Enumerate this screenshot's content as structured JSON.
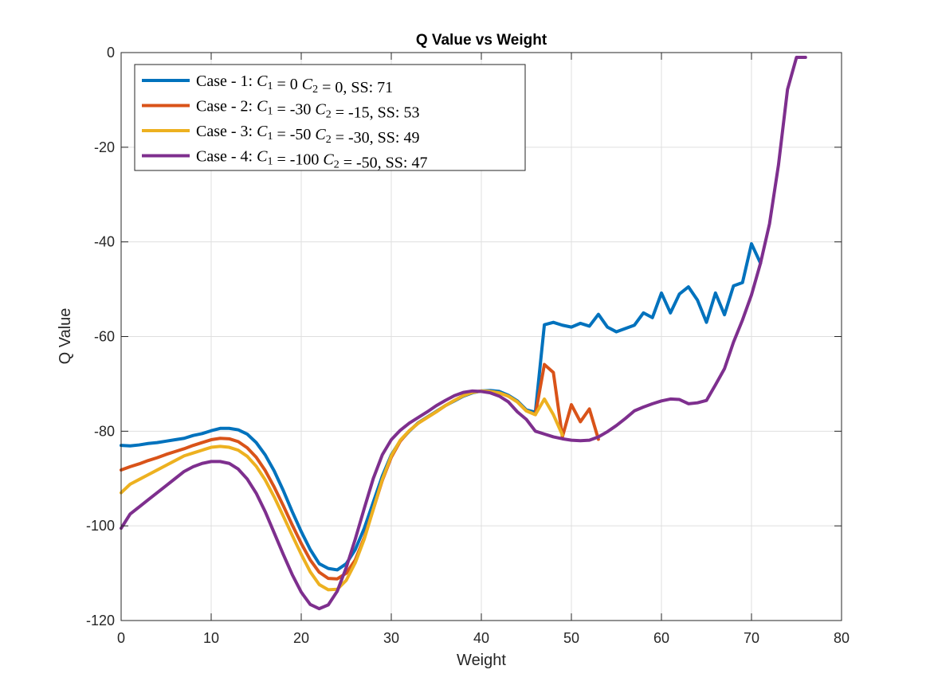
{
  "chart_data": {
    "type": "line",
    "title": "Q Value vs Weight",
    "xlabel": "Weight",
    "ylabel": "Q Value",
    "xlim": [
      0,
      80
    ],
    "ylim": [
      -120,
      0
    ],
    "xticks": [
      0,
      10,
      20,
      30,
      40,
      50,
      60,
      70,
      80
    ],
    "yticks": [
      0,
      -20,
      -40,
      -60,
      -80,
      -100,
      -120
    ],
    "grid": true,
    "legend_position": "top-left",
    "series": [
      {
        "name": "Case - 1: C1 = 0 C2 = 0, SS: 71",
        "legend": {
          "prefix": "Case - 1: ",
          "c1": "0",
          "c2": "0",
          "suffix": ", SS: 71"
        },
        "color": "#0072BD",
        "x": [
          0,
          1,
          2,
          3,
          4,
          5,
          6,
          7,
          8,
          9,
          10,
          11,
          12,
          13,
          14,
          15,
          16,
          17,
          18,
          19,
          20,
          21,
          22,
          23,
          24,
          25,
          26,
          27,
          28,
          29,
          30,
          31,
          32,
          33,
          34,
          35,
          36,
          37,
          38,
          39,
          40,
          41,
          42,
          43,
          44,
          45,
          46,
          47,
          48,
          49,
          50,
          51,
          52,
          53,
          54,
          55,
          56,
          57,
          58,
          59,
          60,
          61,
          62,
          63,
          64,
          65,
          66,
          67,
          68,
          69,
          70,
          71
        ],
        "y": [
          -83,
          -83.1,
          -82.9,
          -82.6,
          -82.4,
          -82.1,
          -81.8,
          -81.5,
          -80.9,
          -80.5,
          -79.9,
          -79.4,
          -79.4,
          -79.7,
          -80.6,
          -82.4,
          -85,
          -88.4,
          -92.5,
          -97,
          -101.2,
          -105,
          -108,
          -109,
          -109.3,
          -108,
          -105,
          -100.5,
          -95,
          -89.5,
          -85,
          -82,
          -80,
          -78.2,
          -77,
          -75.8,
          -74.6,
          -73.6,
          -72.6,
          -71.9,
          -71.5,
          -71.4,
          -71.6,
          -72.4,
          -73.6,
          -75.5,
          -76,
          -57.5,
          -57,
          -57.6,
          -58,
          -57.2,
          -57.8,
          -55.3,
          -58,
          -59,
          -58.3,
          -57.6,
          -55,
          -56,
          -50.8,
          -55,
          -51,
          -49.5,
          -52.3,
          -57,
          -50.8,
          -55.4,
          -49.3,
          -48.6,
          -40.4,
          -44.5
        ]
      },
      {
        "name": "Case - 2: C1 = -30 C2 = -15, SS: 53",
        "legend": {
          "prefix": "Case - 2: ",
          "c1": "-30",
          "c2": "-15",
          "suffix": ", SS: 53"
        },
        "color": "#D95319",
        "x": [
          0,
          1,
          2,
          3,
          4,
          5,
          6,
          7,
          8,
          9,
          10,
          11,
          12,
          13,
          14,
          15,
          16,
          17,
          18,
          19,
          20,
          21,
          22,
          23,
          24,
          25,
          26,
          27,
          28,
          29,
          30,
          31,
          32,
          33,
          34,
          35,
          36,
          37,
          38,
          39,
          40,
          41,
          42,
          43,
          44,
          45,
          46,
          47,
          48,
          49,
          50,
          51,
          52,
          53
        ],
        "y": [
          -88.2,
          -87.5,
          -86.9,
          -86.2,
          -85.6,
          -84.9,
          -84.3,
          -83.7,
          -83,
          -82.4,
          -81.8,
          -81.5,
          -81.6,
          -82.2,
          -83.5,
          -85.5,
          -88.3,
          -91.8,
          -95.7,
          -99.8,
          -103.7,
          -107.2,
          -109.8,
          -111.1,
          -111.2,
          -110,
          -107.2,
          -102.5,
          -96.5,
          -90.4,
          -85.5,
          -82.1,
          -79.9,
          -78.3,
          -77.1,
          -75.9,
          -74.6,
          -73.5,
          -72.5,
          -71.8,
          -71.5,
          -71.6,
          -71.9,
          -72.6,
          -73.8,
          -75.7,
          -76.5,
          -65.9,
          -67.6,
          -81.2,
          -74.4,
          -78,
          -75.3,
          -81.7
        ]
      },
      {
        "name": "Case - 3: C1 = -50 C2 = -30, SS: 49",
        "legend": {
          "prefix": "Case - 3: ",
          "c1": "-50",
          "c2": "-30",
          "suffix": ", SS: 49"
        },
        "color": "#EDB120",
        "x": [
          0,
          1,
          2,
          3,
          4,
          5,
          6,
          7,
          8,
          9,
          10,
          11,
          12,
          13,
          14,
          15,
          16,
          17,
          18,
          19,
          20,
          21,
          22,
          23,
          24,
          25,
          26,
          27,
          28,
          29,
          30,
          31,
          32,
          33,
          34,
          35,
          36,
          37,
          38,
          39,
          40,
          41,
          42,
          43,
          44,
          45,
          46,
          47,
          48,
          49
        ],
        "y": [
          -93,
          -91.2,
          -90.2,
          -89.2,
          -88.2,
          -87.2,
          -86.2,
          -85.2,
          -84.6,
          -84,
          -83.4,
          -83.2,
          -83.4,
          -84,
          -85.3,
          -87.4,
          -90.3,
          -93.9,
          -97.9,
          -102,
          -106,
          -109.7,
          -112.4,
          -113.5,
          -113.4,
          -111.5,
          -107.8,
          -102.8,
          -96.5,
          -90.2,
          -85.2,
          -81.9,
          -79.9,
          -78.3,
          -77.1,
          -75.9,
          -74.6,
          -73.5,
          -72.5,
          -71.8,
          -71.5,
          -71.6,
          -71.9,
          -72.6,
          -73.8,
          -75.7,
          -76.5,
          -73.2,
          -76.5,
          -80.8
        ]
      },
      {
        "name": "Case - 4: C1 = -100 C2 = -50, SS: 47",
        "legend": {
          "prefix": "Case - 4: ",
          "c1": "-100",
          "c2": "-50",
          "suffix": ", SS: 47"
        },
        "color": "#7E2F8E",
        "x": [
          0,
          1,
          2,
          3,
          4,
          5,
          6,
          7,
          8,
          9,
          10,
          11,
          12,
          13,
          14,
          15,
          16,
          17,
          18,
          19,
          20,
          21,
          22,
          23,
          24,
          25,
          26,
          27,
          28,
          29,
          30,
          31,
          32,
          33,
          34,
          35,
          36,
          37,
          38,
          39,
          40,
          41,
          42,
          43,
          44,
          45,
          46,
          47,
          48,
          49,
          50,
          51,
          52,
          53,
          54,
          55,
          56,
          57,
          58,
          59,
          60,
          61,
          62,
          63,
          64,
          65,
          66,
          67,
          68,
          69,
          70,
          71,
          72,
          73,
          74,
          75,
          76
        ],
        "y": [
          -100.5,
          -97.5,
          -96,
          -94.5,
          -93,
          -91.5,
          -90,
          -88.5,
          -87.5,
          -86.8,
          -86.4,
          -86.4,
          -86.8,
          -88,
          -90.1,
          -93.1,
          -97,
          -101.5,
          -106,
          -110.3,
          -114,
          -116.6,
          -117.5,
          -116.7,
          -113.8,
          -108.8,
          -102.8,
          -96.3,
          -90,
          -85,
          -81.8,
          -79.8,
          -78.3,
          -77.1,
          -75.9,
          -74.6,
          -73.5,
          -72.5,
          -71.8,
          -71.5,
          -71.6,
          -71.9,
          -72.6,
          -73.8,
          -75.9,
          -77.5,
          -80,
          -80.6,
          -81.2,
          -81.6,
          -81.9,
          -82,
          -81.9,
          -81.2,
          -80.1,
          -78.8,
          -77.3,
          -75.7,
          -74.9,
          -74.2,
          -73.6,
          -73.2,
          -73.3,
          -74.2,
          -74,
          -73.5,
          -70.2,
          -66.8,
          -61.2,
          -56.5,
          -51.2,
          -44.5,
          -36.2,
          -23.7,
          -7.8,
          -1,
          -1
        ]
      }
    ]
  }
}
